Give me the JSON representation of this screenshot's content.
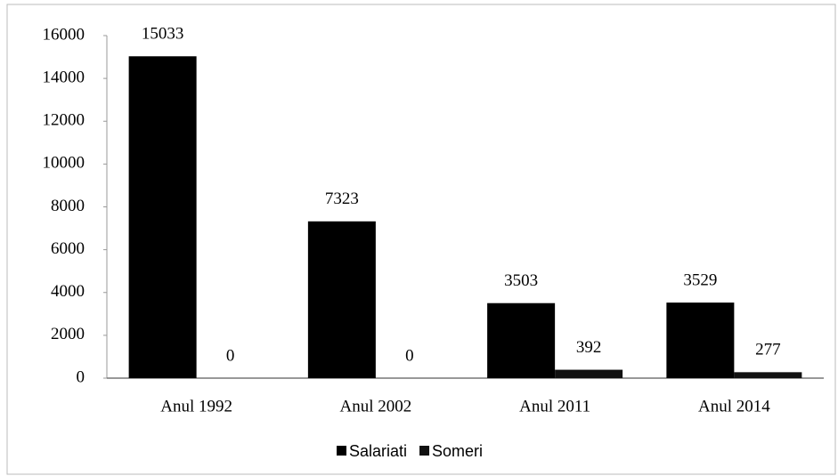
{
  "chart_data": {
    "type": "bar",
    "categories": [
      "Anul 1992",
      "Anul 2002",
      "Anul 2011",
      "Anul 2014"
    ],
    "series": [
      {
        "name": "Salariati",
        "color": "#000000",
        "values": [
          15033,
          7323,
          3503,
          3529
        ]
      },
      {
        "name": "Someri",
        "color": "#111111",
        "values": [
          0,
          0,
          392,
          277
        ]
      }
    ],
    "ylim": [
      0,
      16000
    ],
    "yticks": [
      0,
      2000,
      4000,
      6000,
      8000,
      10000,
      12000,
      14000,
      16000
    ],
    "grid": false,
    "legend": "bottom"
  }
}
